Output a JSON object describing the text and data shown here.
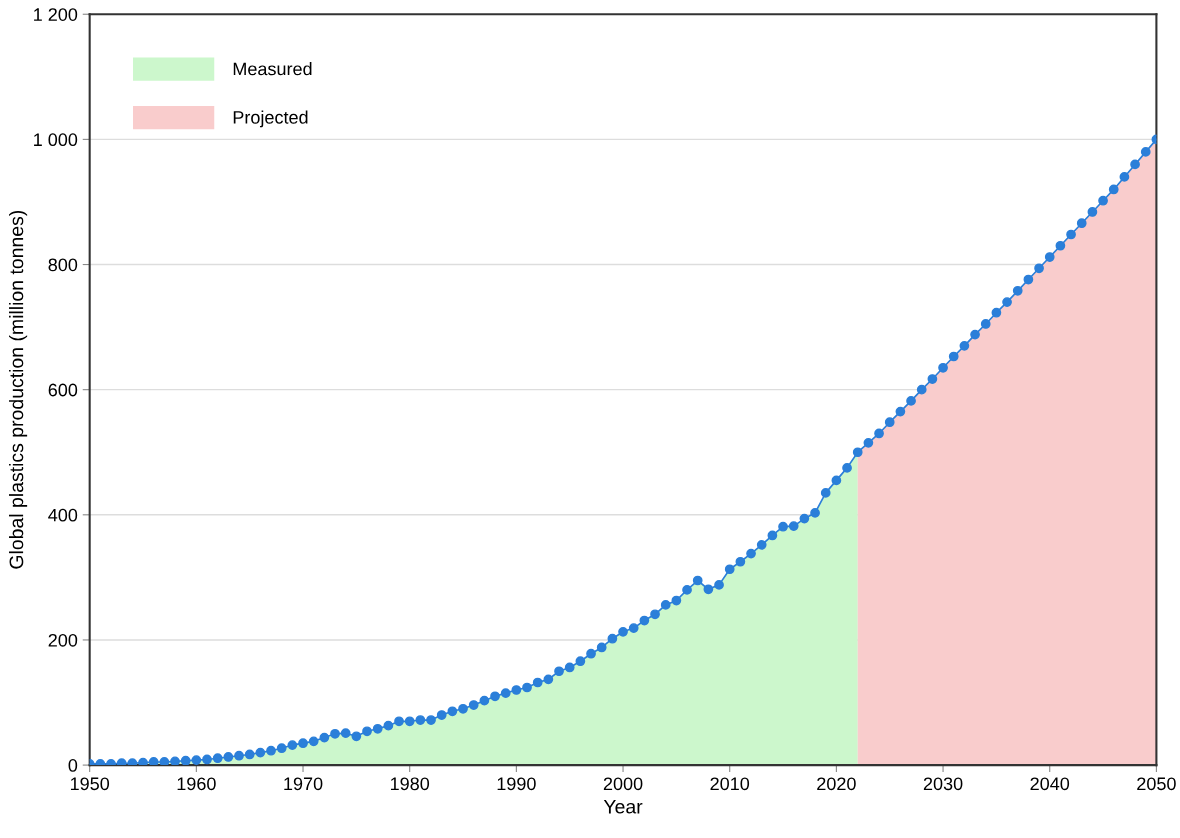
{
  "chart_data": {
    "type": "area",
    "xlabel": "Year",
    "ylabel": "Global plastics production (million tonnes)",
    "xlim": [
      1950,
      2050
    ],
    "ylim": [
      0,
      1200
    ],
    "xticks": [
      1950,
      1960,
      1970,
      1980,
      1990,
      2000,
      2010,
      2020,
      2030,
      2040,
      2050
    ],
    "yticks": [
      0,
      200,
      400,
      600,
      800,
      {
        "value": 1000,
        "label": "1 000"
      },
      {
        "value": 1200,
        "label": "1 200"
      }
    ],
    "grid": "y",
    "legend": "top left",
    "series": [
      {
        "name": "Measured",
        "color": "#ccf7cc",
        "x": [
          1950,
          1951,
          1952,
          1953,
          1954,
          1955,
          1956,
          1957,
          1958,
          1959,
          1960,
          1961,
          1962,
          1963,
          1964,
          1965,
          1966,
          1967,
          1968,
          1969,
          1970,
          1971,
          1972,
          1973,
          1974,
          1975,
          1976,
          1977,
          1978,
          1979,
          1980,
          1981,
          1982,
          1983,
          1984,
          1985,
          1986,
          1987,
          1988,
          1989,
          1990,
          1991,
          1992,
          1993,
          1994,
          1995,
          1996,
          1997,
          1998,
          1999,
          2000,
          2001,
          2002,
          2003,
          2004,
          2005,
          2006,
          2007,
          2008,
          2009,
          2010,
          2011,
          2012,
          2013,
          2014,
          2015,
          2016,
          2017,
          2018,
          2019,
          2020,
          2021,
          2022
        ],
        "values": [
          2,
          2,
          2,
          3,
          3,
          4,
          5,
          5,
          6,
          7,
          8,
          9,
          11,
          13,
          15,
          17,
          20,
          23,
          27,
          32,
          35,
          38,
          44,
          50,
          51,
          46,
          54,
          58,
          63,
          70,
          70,
          72,
          72,
          80,
          86,
          90,
          96,
          103,
          110,
          115,
          120,
          124,
          132,
          137,
          150,
          156,
          166,
          178,
          188,
          202,
          213,
          219,
          231,
          241,
          256,
          263,
          280,
          295,
          281,
          288,
          313,
          325,
          338,
          352,
          367,
          381,
          382,
          394,
          403,
          435,
          455,
          475,
          500
        ]
      },
      {
        "name": "Projected",
        "color": "#f9cccc",
        "x": [
          2022,
          2023,
          2024,
          2025,
          2026,
          2027,
          2028,
          2029,
          2030,
          2031,
          2032,
          2033,
          2034,
          2035,
          2036,
          2037,
          2038,
          2039,
          2040,
          2041,
          2042,
          2043,
          2044,
          2045,
          2046,
          2047,
          2048,
          2049,
          2050
        ],
        "values": [
          500,
          515,
          530,
          548,
          565,
          582,
          600,
          617,
          635,
          653,
          670,
          688,
          705,
          723,
          740,
          758,
          776,
          794,
          812,
          830,
          848,
          866,
          884,
          902,
          920,
          940,
          960,
          980,
          1000
        ]
      },
      {
        "type": "line",
        "color": "#2b7fd9",
        "marker": "circle",
        "line_style": "solid",
        "x": [
          1950,
          1951,
          1952,
          1953,
          1954,
          1955,
          1956,
          1957,
          1958,
          1959,
          1960,
          1961,
          1962,
          1963,
          1964,
          1965,
          1966,
          1967,
          1968,
          1969,
          1970,
          1971,
          1972,
          1973,
          1974,
          1975,
          1976,
          1977,
          1978,
          1979,
          1980,
          1981,
          1982,
          1983,
          1984,
          1985,
          1986,
          1987,
          1988,
          1989,
          1990,
          1991,
          1992,
          1993,
          1994,
          1995,
          1996,
          1997,
          1998,
          1999,
          2000,
          2001,
          2002,
          2003,
          2004,
          2005,
          2006,
          2007,
          2008,
          2009,
          2010,
          2011,
          2012,
          2013,
          2014,
          2015,
          2016,
          2017,
          2018,
          2019,
          2020,
          2021,
          2022,
          2023,
          2024,
          2025,
          2026,
          2027,
          2028,
          2029,
          2030,
          2031,
          2032,
          2033,
          2034,
          2035,
          2036,
          2037,
          2038,
          2039,
          2040,
          2041,
          2042,
          2043,
          2044,
          2045,
          2046,
          2047,
          2048,
          2049,
          2050
        ],
        "values": [
          2,
          2,
          2,
          3,
          3,
          4,
          5,
          5,
          6,
          7,
          8,
          9,
          11,
          13,
          15,
          17,
          20,
          23,
          27,
          32,
          35,
          38,
          44,
          50,
          51,
          46,
          54,
          58,
          63,
          70,
          70,
          72,
          72,
          80,
          86,
          90,
          96,
          103,
          110,
          115,
          120,
          124,
          132,
          137,
          150,
          156,
          166,
          178,
          188,
          202,
          213,
          219,
          231,
          241,
          256,
          263,
          280,
          295,
          281,
          288,
          313,
          325,
          338,
          352,
          367,
          381,
          382,
          394,
          403,
          435,
          455,
          475,
          500,
          515,
          530,
          548,
          565,
          582,
          600,
          617,
          635,
          653,
          670,
          688,
          705,
          723,
          740,
          758,
          776,
          794,
          812,
          830,
          848,
          866,
          884,
          902,
          920,
          940,
          960,
          980,
          1000
        ]
      }
    ]
  }
}
